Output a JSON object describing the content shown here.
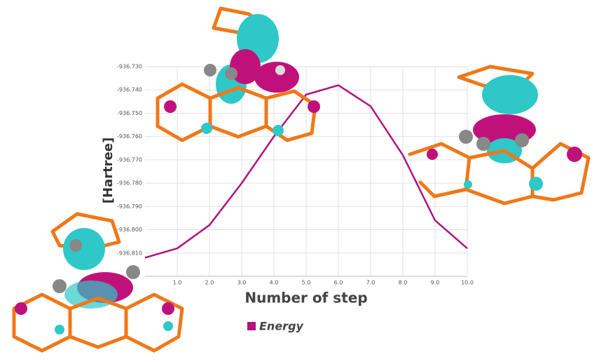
{
  "chart_data": {
    "type": "line",
    "x_label": "Number of step",
    "y_label": "[Hartree]",
    "x": [
      0,
      1,
      2,
      3,
      4,
      5,
      6,
      7,
      8,
      9,
      10
    ],
    "series": [
      {
        "name": "Energy",
        "color": "#b0127f",
        "values": [
          -936.812,
          -936.808,
          -936.798,
          -936.78,
          -936.76,
          -936.742,
          -936.738,
          -936.747,
          -936.768,
          -936.796,
          -936.808
        ]
      }
    ],
    "xlim": [
      0,
      10
    ],
    "xticks": [
      {
        "value": 1,
        "label": "1.0"
      },
      {
        "value": 2,
        "label": "2.0"
      },
      {
        "value": 3,
        "label": "3.0"
      },
      {
        "value": 4,
        "label": "4.0"
      },
      {
        "value": 5,
        "label": "5.0"
      },
      {
        "value": 6,
        "label": "6.0"
      },
      {
        "value": 7,
        "label": "7.0"
      },
      {
        "value": 8,
        "label": "8.0"
      },
      {
        "value": 9,
        "label": "9.0"
      },
      {
        "value": 10,
        "label": "10.0"
      }
    ],
    "ylim": [
      -936.82,
      -936.73
    ],
    "yticks": [
      {
        "value": -936.73,
        "label": "-936.730"
      },
      {
        "value": -936.74,
        "label": "-936.740"
      },
      {
        "value": -936.75,
        "label": "-936.750"
      },
      {
        "value": -936.76,
        "label": "-936.760"
      },
      {
        "value": -936.77,
        "label": "-936.770"
      },
      {
        "value": -936.78,
        "label": "-936.780"
      },
      {
        "value": -936.79,
        "label": "-936.790"
      },
      {
        "value": -936.8,
        "label": "-936.800"
      },
      {
        "value": -936.81,
        "label": "-936.810"
      }
    ],
    "grid": true
  }
}
